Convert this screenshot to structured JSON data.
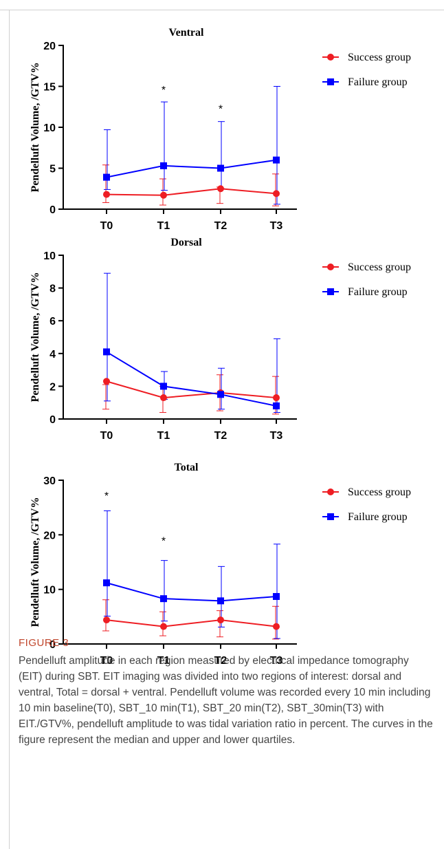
{
  "colors": {
    "success": "#ee1d23",
    "failure": "#0000ff",
    "axis": "#000000",
    "caption_label": "#c0462c",
    "caption_text": "#444444"
  },
  "chart_data": [
    {
      "type": "line",
      "title": "Ventral",
      "ylabel": "Pendelluft Volume, /GTV%",
      "xlabel": "",
      "categories": [
        "T0",
        "T1",
        "T2",
        "T3"
      ],
      "ylim": [
        0,
        20
      ],
      "yticks": [
        0,
        5,
        10,
        15,
        20
      ],
      "legend_position": "top-right",
      "series": [
        {
          "name": "Success group",
          "color": "#ee1d23",
          "marker": "circle",
          "values": [
            1.8,
            1.7,
            2.5,
            1.9
          ],
          "upper": [
            5.4,
            3.7,
            2.7,
            4.3
          ],
          "lower": [
            0.8,
            0.5,
            0.7,
            0.4
          ]
        },
        {
          "name": "Failure group",
          "color": "#0000ff",
          "marker": "square",
          "values": [
            3.9,
            5.3,
            5.0,
            6.0
          ],
          "upper": [
            9.7,
            13.1,
            10.7,
            15.0
          ],
          "lower": [
            2.4,
            2.3,
            2.5,
            0.6
          ]
        }
      ],
      "annotations": [
        {
          "category": "T1",
          "text": "*",
          "y": 14.8
        },
        {
          "category": "T2",
          "text": "*",
          "y": 12.5
        }
      ]
    },
    {
      "type": "line",
      "title": "Dorsal",
      "ylabel": "Pendelluft Volume, /GTV%",
      "xlabel": "",
      "categories": [
        "T0",
        "T1",
        "T2",
        "T3"
      ],
      "ylim": [
        0,
        10
      ],
      "yticks": [
        0,
        2,
        4,
        6,
        8,
        10
      ],
      "legend_position": "top-right",
      "series": [
        {
          "name": "Success group",
          "color": "#ee1d23",
          "marker": "circle",
          "values": [
            2.3,
            1.3,
            1.6,
            1.3
          ],
          "upper": [
            2.1,
            2.0,
            2.7,
            2.6
          ],
          "lower": [
            0.6,
            0.4,
            0.5,
            0.3
          ]
        },
        {
          "name": "Failure group",
          "color": "#0000ff",
          "marker": "square",
          "values": [
            4.1,
            2.0,
            1.5,
            0.8
          ],
          "upper": [
            8.9,
            2.9,
            3.1,
            4.9
          ],
          "lower": [
            1.1,
            1.2,
            0.6,
            0.4
          ]
        }
      ],
      "annotations": []
    },
    {
      "type": "line",
      "title": "Total",
      "ylabel": "Pendelluft Volume, /GTV%",
      "xlabel": "",
      "categories": [
        "T0",
        "T1",
        "T2",
        "T3"
      ],
      "ylim": [
        0,
        30
      ],
      "yticks": [
        0,
        10,
        20,
        30
      ],
      "legend_position": "top-right",
      "series": [
        {
          "name": "Success group",
          "color": "#ee1d23",
          "marker": "circle",
          "values": [
            4.4,
            3.2,
            4.4,
            3.2
          ],
          "upper": [
            8.1,
            5.9,
            6.1,
            6.9
          ],
          "lower": [
            2.4,
            1.5,
            1.3,
            0.9
          ]
        },
        {
          "name": "Failure group",
          "color": "#0000ff",
          "marker": "square",
          "values": [
            11.2,
            8.3,
            7.9,
            8.7
          ],
          "upper": [
            24.4,
            15.3,
            14.2,
            18.3
          ],
          "lower": [
            5.1,
            4.2,
            3.1,
            1.0
          ]
        }
      ],
      "annotations": [
        {
          "category": "T0",
          "text": "*",
          "y": 27.5
        },
        {
          "category": "T1",
          "text": "*",
          "y": 19.2
        }
      ]
    }
  ],
  "caption": {
    "label": "FIGURE 3",
    "text": "Pendelluft amplitude in each region measured by electrical impedance tomography (EIT) during SBT. EIT imaging was divided into two regions of interest: dorsal and ventral, Total = dorsal + ventral. Pendelluft volume was recorded every 10 min including 10 min baseline(T0), SBT_10 min(T1), SBT_20 min(T2), SBT_30min(T3) with EIT./GTV%, pendelluft amplitude to was tidal variation ratio in percent. The curves in the figure represent the median and upper and lower quartiles."
  }
}
